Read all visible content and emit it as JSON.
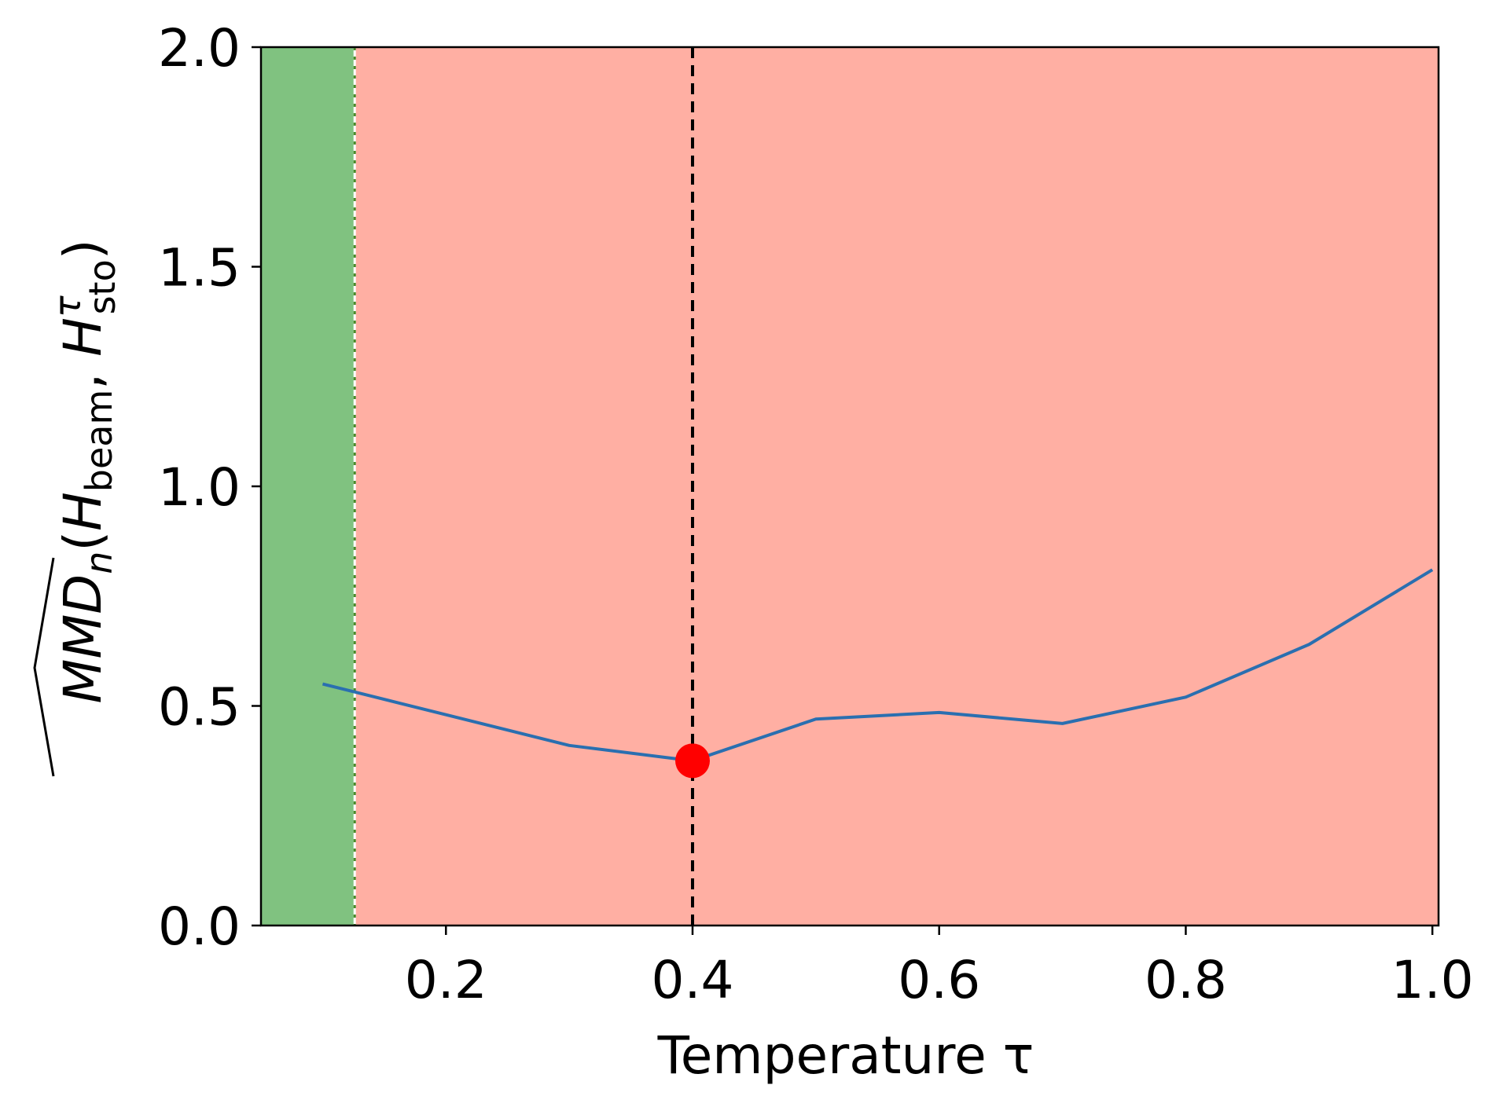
{
  "chart_data": {
    "type": "line",
    "xlabel": "Temperature τ",
    "ylabel": {
      "prefix": "MMD",
      "sub_n": "n",
      "open": "(",
      "H1": "H",
      "sub_beam": "beam",
      "comma": ", ",
      "H2": "H",
      "sup_tau": "τ",
      "sub_sto": "sto",
      "close": ")"
    },
    "xlim": [
      0.05,
      1.005
    ],
    "ylim": [
      0.0,
      2.0
    ],
    "xticks": [
      0.2,
      0.4,
      0.6,
      0.8,
      1.0
    ],
    "xtick_labels": [
      "0.2",
      "0.4",
      "0.6",
      "0.8",
      "1.0"
    ],
    "yticks": [
      0.0,
      0.5,
      1.0,
      1.5,
      2.0
    ],
    "ytick_labels": [
      "0.0",
      "0.5",
      "1.0",
      "1.5",
      "2.0"
    ],
    "grid": false,
    "regions": [
      {
        "name": "green-region",
        "x_start": 0.05,
        "x_end": 0.126,
        "color": "#80c280"
      },
      {
        "name": "red-region",
        "x_start": 0.126,
        "x_end": 1.005,
        "color": "#ffafa3"
      }
    ],
    "threshold_line_x": 0.126,
    "series": [
      {
        "x": [
          0.1,
          0.2,
          0.3,
          0.4,
          0.5,
          0.6,
          0.7,
          0.8,
          0.9,
          1.0
        ],
        "values": [
          0.55,
          0.48,
          0.41,
          0.375,
          0.47,
          0.485,
          0.46,
          0.52,
          0.64,
          0.81
        ],
        "color": "#2a6fb0"
      }
    ],
    "highlight_point": {
      "x": 0.4,
      "y": 0.375,
      "color": "#ff0000"
    },
    "vline_x": 0.4
  }
}
